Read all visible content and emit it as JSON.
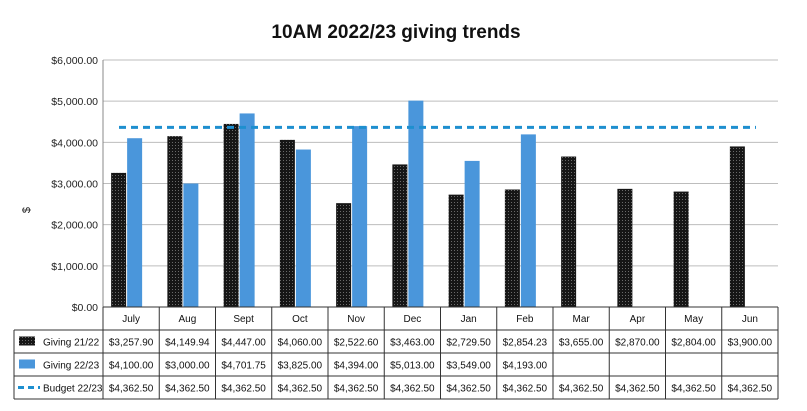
{
  "chart_data": {
    "type": "bar",
    "title": "10AM 2022/23 giving trends",
    "ylabel": "$",
    "ylim": [
      0,
      6000
    ],
    "yticks": [
      "$0.00",
      "$1,000.00",
      "$2,000.00",
      "$3,000.00",
      "$4,000.00",
      "$5,000.00",
      "$6,000.00"
    ],
    "grid": true,
    "legend": "table-below",
    "categories": [
      "July",
      "Aug",
      "Sept",
      "Oct",
      "Nov",
      "Dec",
      "Jan",
      "Feb",
      "Mar",
      "Apr",
      "May",
      "Jun"
    ],
    "series": [
      {
        "name": "Giving 21/22",
        "kind": "bar",
        "color": "#1a1a1a",
        "values": [
          3257.9,
          4149.94,
          4447.0,
          4060.0,
          2522.6,
          3463.0,
          2729.5,
          2854.23,
          3655.0,
          2870.0,
          2804.0,
          3900.0
        ],
        "labels": [
          "$3,257.90",
          "$4,149.94",
          "$4,447.00",
          "$4,060.00",
          "$2,522.60",
          "$3,463.00",
          "$2,729.50",
          "$2,854.23",
          "$3,655.00",
          "$2,870.00",
          "$2,804.00",
          "$3,900.00"
        ]
      },
      {
        "name": "Giving 22/23",
        "kind": "bar",
        "color": "#4a96db",
        "values": [
          4100.0,
          3000.0,
          4701.75,
          3825.0,
          4394.0,
          5013.0,
          3549.0,
          4193.0,
          null,
          null,
          null,
          null
        ],
        "labels": [
          "$4,100.00",
          "$3,000.00",
          "$4,701.75",
          "$3,825.00",
          "$4,394.00",
          "$5,013.00",
          "$3,549.00",
          "$4,193.00",
          "",
          "",
          "",
          ""
        ]
      },
      {
        "name": "Budget 22/23",
        "kind": "dashed-line",
        "color": "#1e8fcf",
        "values": [
          4362.5,
          4362.5,
          4362.5,
          4362.5,
          4362.5,
          4362.5,
          4362.5,
          4362.5,
          4362.5,
          4362.5,
          4362.5,
          4362.5
        ],
        "labels": [
          "$4,362.50",
          "$4,362.50",
          "$4,362.50",
          "$4,362.50",
          "$4,362.50",
          "$4,362.50",
          "$4,362.50",
          "$4,362.50",
          "$4,362.50",
          "$4,362.50",
          "$4,362.50",
          "$4,362.50"
        ]
      }
    ]
  }
}
